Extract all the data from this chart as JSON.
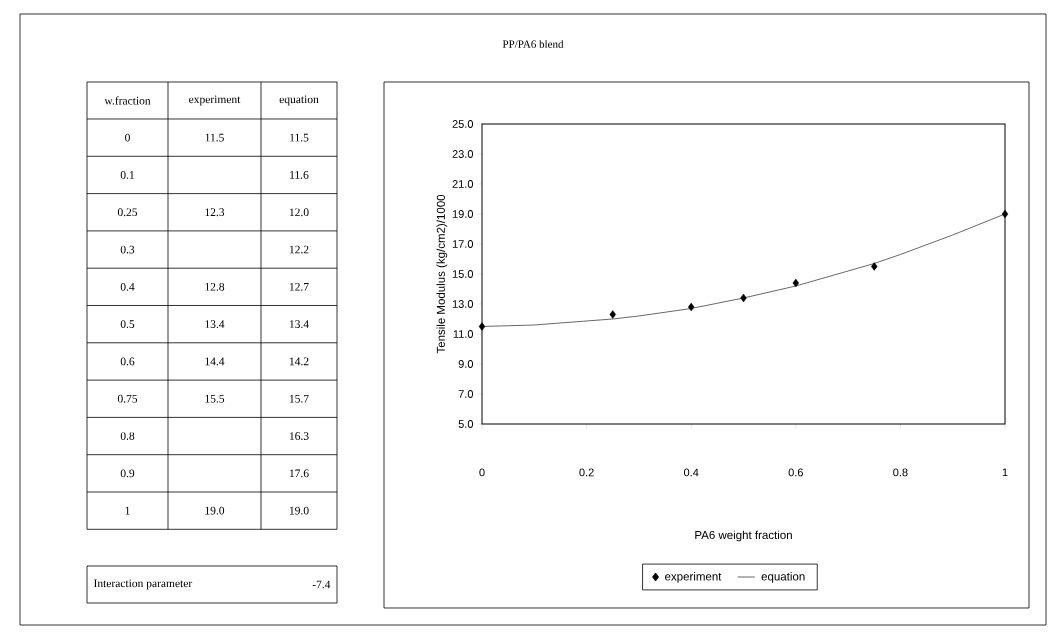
{
  "chart_data": [
    {
      "type": "other",
      "xlabel": "w.fraction",
      "categories": [
        "0",
        "0.1",
        "0.25",
        "0.3",
        "0.4",
        "0.5",
        "0.6",
        "0.75",
        "0.8",
        "0.9",
        "1"
      ],
      "series": [
        {
          "name": "experiment",
          "values": [
            11.5,
            null,
            12.3,
            null,
            12.8,
            13.4,
            14.4,
            15.5,
            null,
            null,
            19.0
          ],
          "value_labels": [
            "11.5",
            null,
            "12.3",
            null,
            "12.8",
            "13.4",
            "14.4",
            "15.5",
            null,
            null,
            "19.0"
          ]
        },
        {
          "name": "equation",
          "values": [
            11.5,
            11.6,
            12.0,
            12.2,
            12.7,
            13.4,
            14.2,
            15.7,
            16.3,
            17.6,
            19.0
          ],
          "value_labels": [
            "11.5",
            "11.6",
            "12.0",
            "12.2",
            "12.7",
            "13.4",
            "14.2",
            "15.7",
            "16.3",
            "17.6",
            "19.0"
          ]
        }
      ],
      "annotations": [
        "Interaction parameter",
        "-7.4"
      ]
    },
    {
      "type": "line",
      "title": "PP/PA6 blend",
      "xlabel": "PA6  weight fraction",
      "ylabel": "Tensile Modulus (kg/cm2)/1000",
      "x": [
        0,
        0.1,
        0.25,
        0.3,
        0.4,
        0.5,
        0.6,
        0.75,
        0.8,
        0.9,
        1
      ],
      "series": [
        {
          "name": "experiment",
          "type": "scatter",
          "marker": "diamond",
          "color": "#000000",
          "x": [
            0,
            0.25,
            0.4,
            0.5,
            0.6,
            0.75,
            1
          ],
          "values": [
            11.5,
            12.3,
            12.8,
            13.4,
            14.4,
            15.5,
            19.0
          ]
        },
        {
          "name": "equation",
          "type": "line",
          "marker": "none",
          "line_style": "solid",
          "color": "#000000",
          "values": [
            11.5,
            11.6,
            12.0,
            12.2,
            12.7,
            13.4,
            14.2,
            15.7,
            16.3,
            17.6,
            19.0
          ]
        }
      ],
      "xlim": [
        0,
        1
      ],
      "ylim": [
        5,
        25
      ],
      "xticks": [
        0,
        0.2,
        0.4,
        0.6,
        0.8,
        1
      ],
      "yticks": [
        {
          "value": 5,
          "label": "5.0"
        },
        {
          "value": 7,
          "label": "7.0"
        },
        {
          "value": 9,
          "label": "9.0"
        },
        {
          "value": 11,
          "label": "11.0"
        },
        {
          "value": 13,
          "label": "13.0"
        },
        {
          "value": 15,
          "label": "15.0"
        },
        {
          "value": 17,
          "label": "17.0"
        },
        {
          "value": 19,
          "label": "19.0"
        },
        {
          "value": 21,
          "label": "21.0"
        },
        {
          "value": 23,
          "label": "23.0"
        },
        {
          "value": 25,
          "label": "25.0"
        }
      ],
      "legend": "bottom"
    }
  ]
}
